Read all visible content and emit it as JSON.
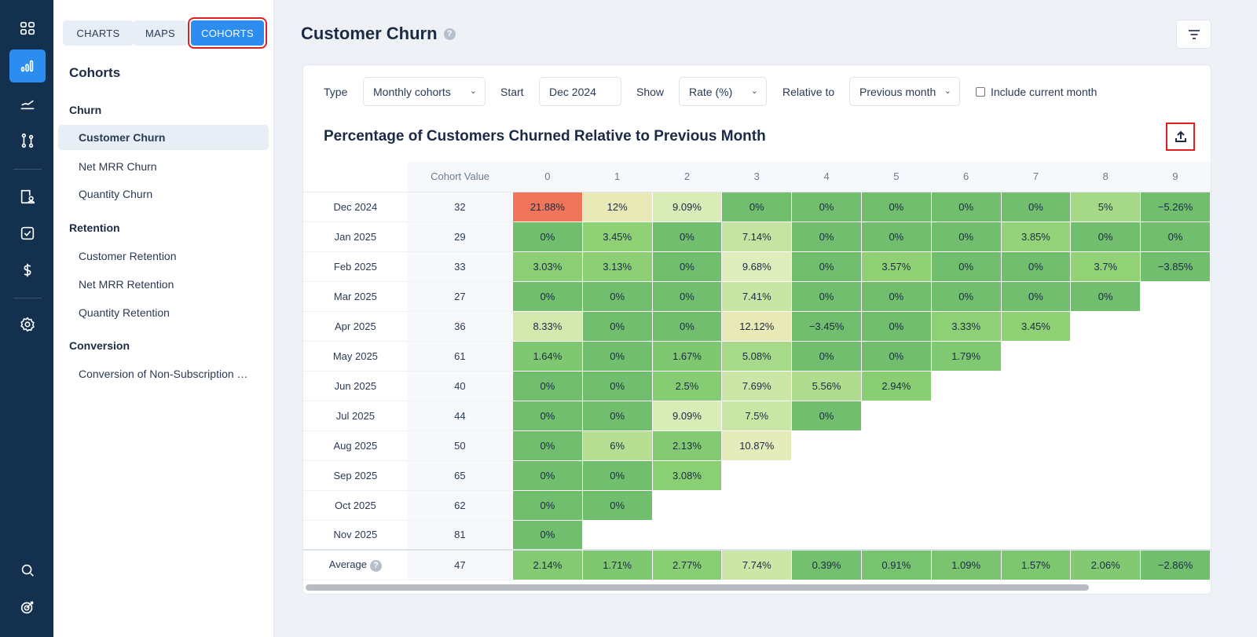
{
  "rail": {
    "icons": [
      "dashboard-icon",
      "bar-chart-icon",
      "line-chart-icon",
      "flow-icon",
      "building-user-icon",
      "checkbox-icon",
      "dollar-icon",
      "settings-icon",
      "search-icon",
      "target-icon"
    ],
    "active": "bar-chart-icon"
  },
  "sidebar": {
    "tabs": [
      {
        "label": "CHARTS"
      },
      {
        "label": "MAPS"
      },
      {
        "label": "COHORTS",
        "active": true
      }
    ],
    "heading": "Cohorts",
    "sections": [
      {
        "title": "Churn",
        "items": [
          "Customer Churn",
          "Net MRR Churn",
          "Quantity Churn"
        ]
      },
      {
        "title": "Retention",
        "items": [
          "Customer Retention",
          "Net MRR Retention",
          "Quantity Retention"
        ]
      },
      {
        "title": "Conversion",
        "items": [
          "Conversion of Non-Subscription …"
        ]
      }
    ],
    "active_item": "Customer Churn"
  },
  "header": {
    "title": "Customer Churn",
    "help": "?"
  },
  "filters": {
    "type_label": "Type",
    "type_value": "Monthly cohorts",
    "start_label": "Start",
    "start_value": "Dec 2024",
    "show_label": "Show",
    "show_value": "Rate (%)",
    "relative_label": "Relative to",
    "relative_value": "Previous month",
    "include_label": "Include current month",
    "include_checked": false
  },
  "chart_data": {
    "type": "table",
    "title": "Percentage of Customers Churned Relative to Previous Month",
    "columns": [
      "Cohort Value",
      "0",
      "1",
      "2",
      "3",
      "4",
      "5",
      "6",
      "7",
      "8",
      "9"
    ],
    "rows": [
      {
        "label": "Dec 2024",
        "cohort": "32",
        "values": [
          "21.88%",
          "12%",
          "9.09%",
          "0%",
          "0%",
          "0%",
          "0%",
          "0%",
          "5%",
          "−5.26%"
        ]
      },
      {
        "label": "Jan 2025",
        "cohort": "29",
        "values": [
          "0%",
          "3.45%",
          "0%",
          "7.14%",
          "0%",
          "0%",
          "0%",
          "3.85%",
          "0%",
          "0%"
        ]
      },
      {
        "label": "Feb 2025",
        "cohort": "33",
        "values": [
          "3.03%",
          "3.13%",
          "0%",
          "9.68%",
          "0%",
          "3.57%",
          "0%",
          "0%",
          "3.7%",
          "−3.85%"
        ]
      },
      {
        "label": "Mar 2025",
        "cohort": "27",
        "values": [
          "0%",
          "0%",
          "0%",
          "7.41%",
          "0%",
          "0%",
          "0%",
          "0%",
          "0%"
        ]
      },
      {
        "label": "Apr 2025",
        "cohort": "36",
        "values": [
          "8.33%",
          "0%",
          "0%",
          "12.12%",
          "−3.45%",
          "0%",
          "3.33%",
          "3.45%"
        ]
      },
      {
        "label": "May 2025",
        "cohort": "61",
        "values": [
          "1.64%",
          "0%",
          "1.67%",
          "5.08%",
          "0%",
          "0%",
          "1.79%"
        ]
      },
      {
        "label": "Jun 2025",
        "cohort": "40",
        "values": [
          "0%",
          "0%",
          "2.5%",
          "7.69%",
          "5.56%",
          "2.94%"
        ]
      },
      {
        "label": "Jul 2025",
        "cohort": "44",
        "values": [
          "0%",
          "0%",
          "9.09%",
          "7.5%",
          "0%"
        ]
      },
      {
        "label": "Aug 2025",
        "cohort": "50",
        "values": [
          "0%",
          "6%",
          "2.13%",
          "10.87%"
        ]
      },
      {
        "label": "Sep 2025",
        "cohort": "65",
        "values": [
          "0%",
          "0%",
          "3.08%"
        ]
      },
      {
        "label": "Oct 2025",
        "cohort": "62",
        "values": [
          "0%",
          "0%"
        ]
      },
      {
        "label": "Nov 2025",
        "cohort": "81",
        "values": [
          "0%"
        ]
      }
    ],
    "average": {
      "label": "Average",
      "help": "?",
      "cohort": "47",
      "values": [
        "2.14%",
        "1.71%",
        "2.77%",
        "7.74%",
        "0.39%",
        "0.91%",
        "1.09%",
        "1.57%",
        "2.06%",
        "−2.86%"
      ]
    }
  }
}
